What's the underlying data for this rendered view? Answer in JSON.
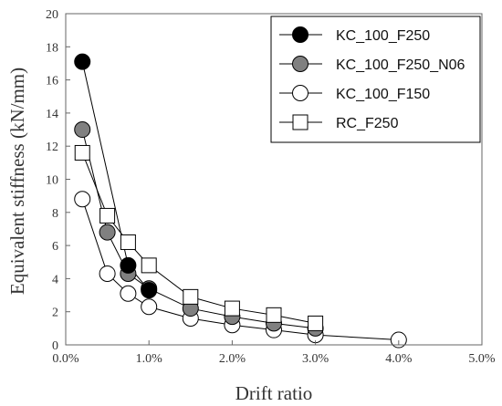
{
  "chart_data": {
    "type": "line",
    "xlabel": "Drift ratio",
    "ylabel": "Equivalent stiffness (kN/mm)",
    "xlim": [
      0,
      5
    ],
    "ylim": [
      0,
      20
    ],
    "x_ticks": [
      "0.0%",
      "1.0%",
      "2.0%",
      "3.0%",
      "4.0%",
      "5.0%"
    ],
    "y_ticks": [
      "0",
      "2",
      "4",
      "6",
      "8",
      "10",
      "12",
      "14",
      "16",
      "18",
      "20"
    ],
    "x_tick_values": [
      0,
      1,
      2,
      3,
      4,
      5
    ],
    "y_tick_values": [
      0,
      2,
      4,
      6,
      8,
      10,
      12,
      14,
      16,
      18,
      20
    ],
    "grid": false,
    "legend_position": "top-right",
    "series": [
      {
        "name": "KC_100_F250",
        "marker": "circle",
        "fill": "#000000",
        "stroke": "#000000",
        "x": [
          0.2,
          0.75,
          1.0
        ],
        "y": [
          17.1,
          4.8,
          3.3
        ]
      },
      {
        "name": "KC_100_F250_N06",
        "marker": "circle",
        "fill": "#808080",
        "stroke": "#000000",
        "x": [
          0.2,
          0.5,
          0.75,
          1.0,
          1.5,
          2.0,
          2.5,
          3.0
        ],
        "y": [
          13.0,
          6.8,
          4.3,
          3.4,
          2.2,
          1.7,
          1.3,
          1.0
        ]
      },
      {
        "name": "KC_100_F150",
        "marker": "circle",
        "fill": "#ffffff",
        "stroke": "#000000",
        "x": [
          0.2,
          0.5,
          0.75,
          1.0,
          1.5,
          2.0,
          2.5,
          3.0,
          4.0
        ],
        "y": [
          8.8,
          4.3,
          3.1,
          2.3,
          1.6,
          1.2,
          0.9,
          0.6,
          0.3
        ]
      },
      {
        "name": "RC_F250",
        "marker": "square",
        "fill": "#ffffff",
        "stroke": "#000000",
        "x": [
          0.2,
          0.5,
          0.75,
          1.0,
          1.5,
          2.0,
          2.5,
          3.0
        ],
        "y": [
          11.6,
          7.8,
          6.2,
          4.8,
          2.9,
          2.2,
          1.8,
          1.3
        ]
      }
    ]
  }
}
